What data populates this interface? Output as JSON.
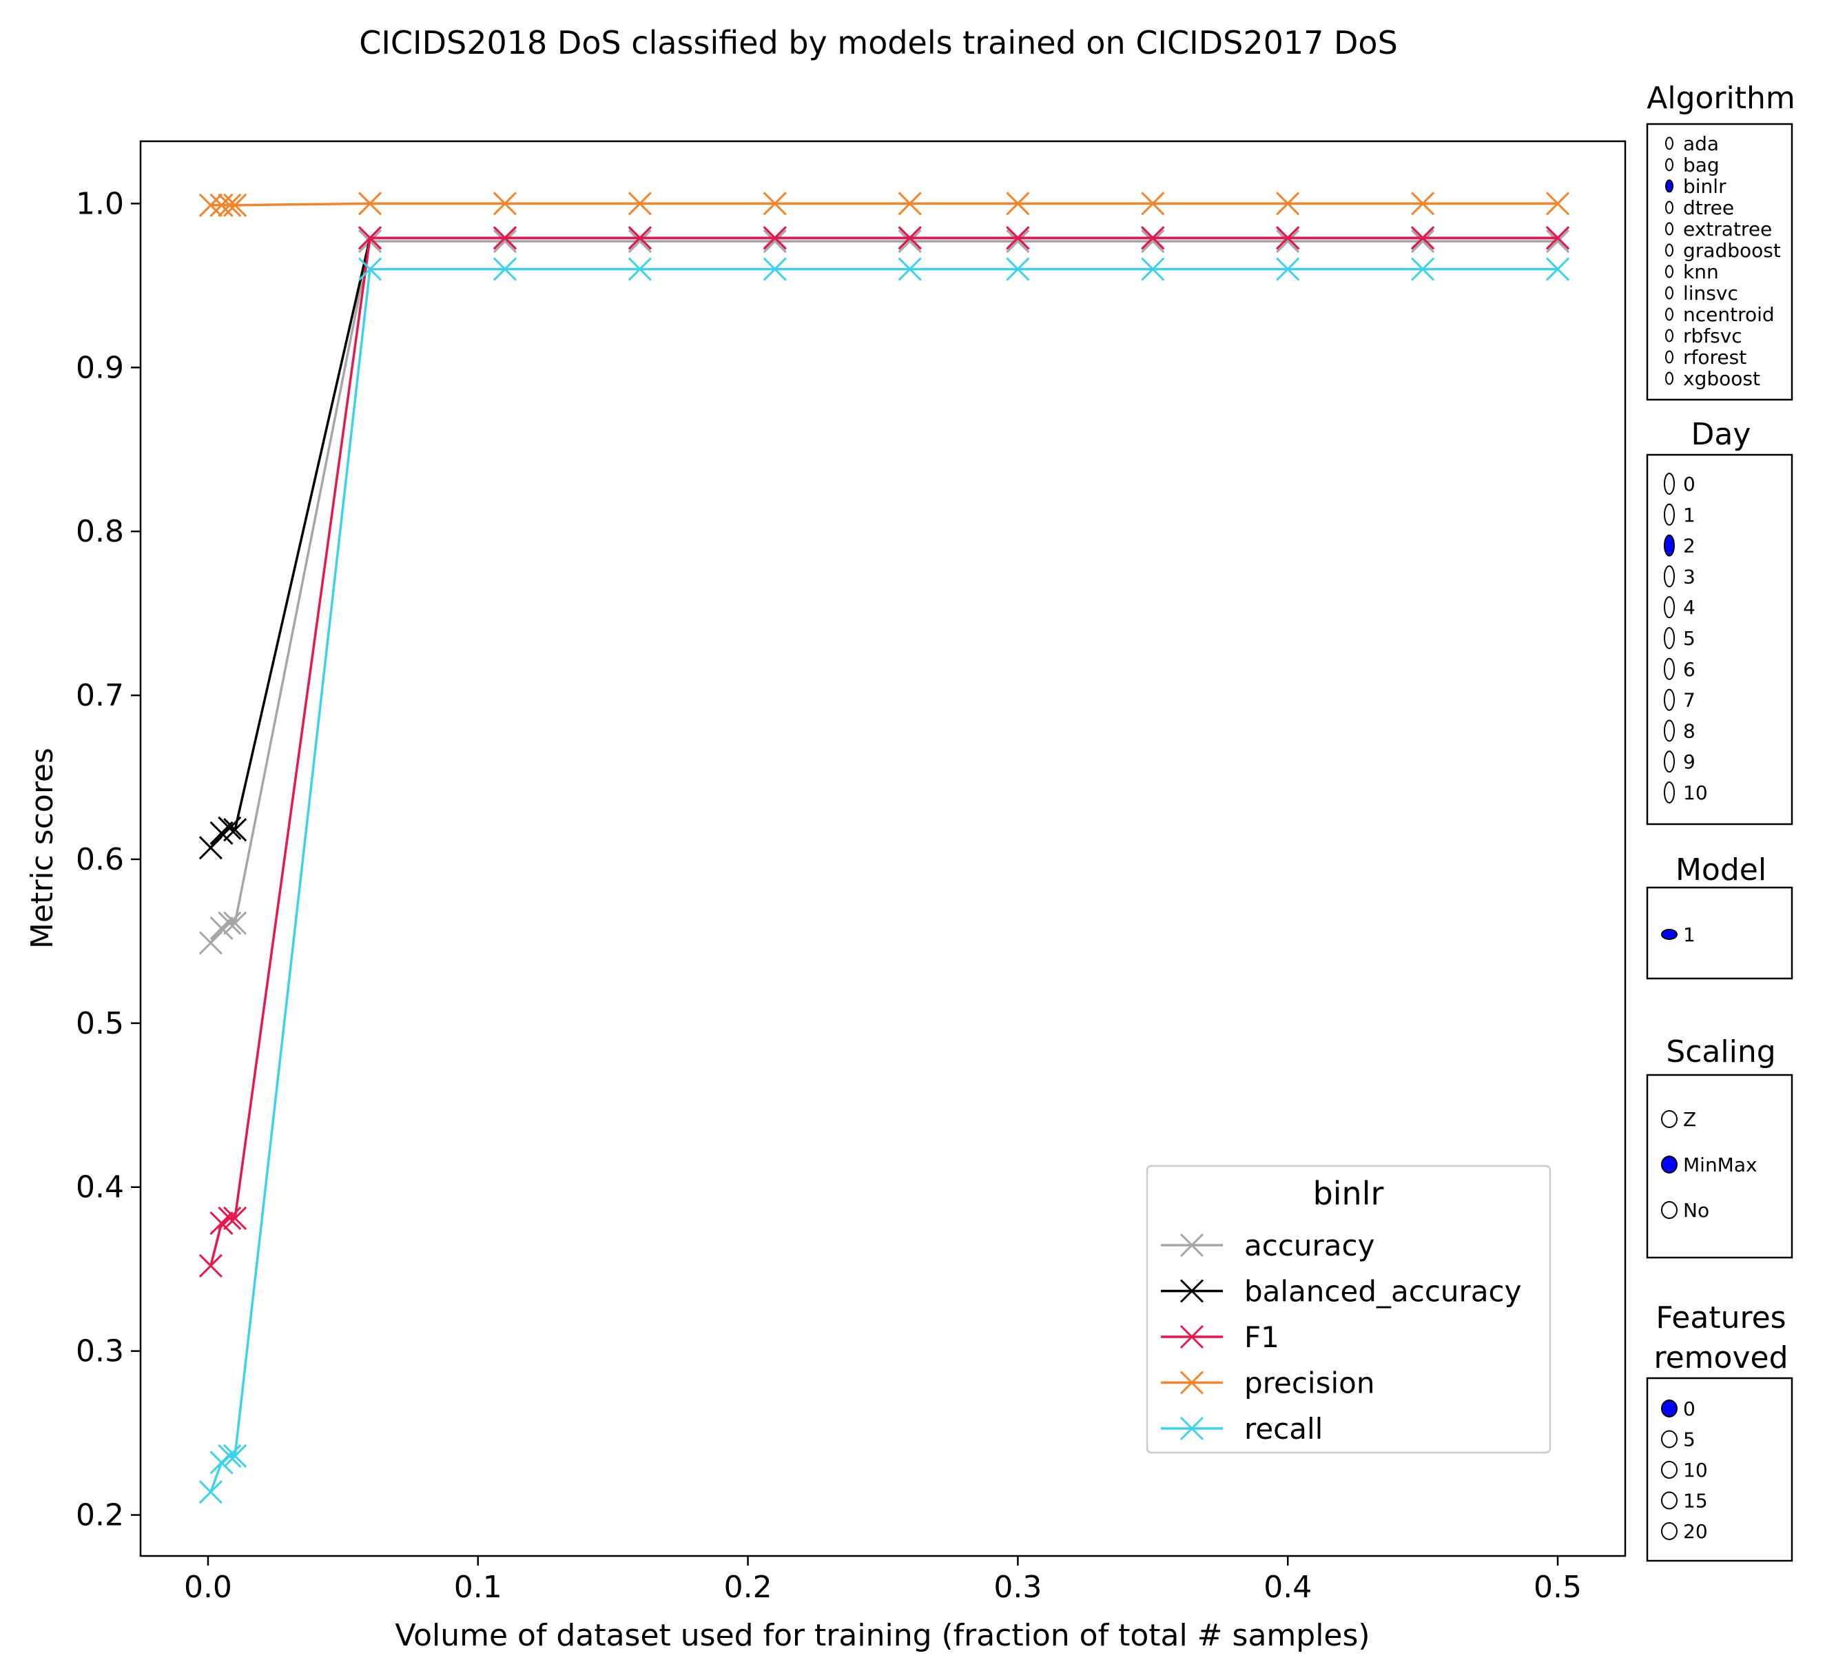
{
  "chart_data": {
    "type": "line",
    "title": "CICIDS2018 DoS classified by models trained on CICIDS2017 DoS",
    "xlabel": "Volume of dataset used for training (fraction of total # samples)",
    "ylabel": "Metric scores",
    "xlim": [
      -0.025,
      0.525
    ],
    "ylim": [
      0.175,
      1.038
    ],
    "xticks": [
      0.0,
      0.1,
      0.2,
      0.3,
      0.4,
      0.5
    ],
    "xtick_labels": [
      "0.0",
      "0.1",
      "0.2",
      "0.3",
      "0.4",
      "0.5"
    ],
    "yticks": [
      0.2,
      0.3,
      0.4,
      0.5,
      0.6,
      0.7,
      0.8,
      0.9,
      1.0
    ],
    "ytick_labels": [
      "0.2",
      "0.3",
      "0.4",
      "0.5",
      "0.6",
      "0.7",
      "0.8",
      "0.9",
      "1.0"
    ],
    "grid": false,
    "marker": "x",
    "x": [
      0.001,
      0.005,
      0.008,
      0.01,
      0.06,
      0.11,
      0.16,
      0.21,
      0.26,
      0.3,
      0.35,
      0.4,
      0.45,
      0.5
    ],
    "legend": {
      "title": "binlr",
      "placement": "lower-right"
    },
    "series": [
      {
        "name": "accuracy",
        "color": "#a6a6a6",
        "values": [
          0.549,
          0.558,
          0.561,
          0.561,
          0.977,
          0.977,
          0.977,
          0.977,
          0.977,
          0.977,
          0.977,
          0.977,
          0.977,
          0.977
        ]
      },
      {
        "name": "balanced_accuracy",
        "color": "#000000",
        "values": [
          0.607,
          0.616,
          0.619,
          0.618,
          0.979,
          0.979,
          0.979,
          0.979,
          0.979,
          0.979,
          0.979,
          0.979,
          0.979,
          0.979
        ]
      },
      {
        "name": "F1",
        "color": "#e8174d",
        "values": [
          0.352,
          0.378,
          0.381,
          0.381,
          0.979,
          0.979,
          0.979,
          0.979,
          0.979,
          0.979,
          0.979,
          0.979,
          0.979,
          0.979
        ]
      },
      {
        "name": "precision",
        "color": "#f5832a",
        "values": [
          0.999,
          0.999,
          0.999,
          0.999,
          1.0,
          1.0,
          1.0,
          1.0,
          1.0,
          1.0,
          1.0,
          1.0,
          1.0,
          1.0
        ]
      },
      {
        "name": "recall",
        "color": "#3dd2ec",
        "values": [
          0.214,
          0.232,
          0.236,
          0.236,
          0.96,
          0.96,
          0.96,
          0.96,
          0.96,
          0.96,
          0.96,
          0.96,
          0.96,
          0.96
        ]
      }
    ]
  },
  "controls": {
    "fill_color": "#0000ff",
    "groups": [
      {
        "title": "Algorithm",
        "selected": "binlr",
        "options": [
          "ada",
          "bag",
          "binlr",
          "dtree",
          "extratree",
          "gradboost",
          "knn",
          "linsvc",
          "ncentroid",
          "rbfsvc",
          "rforest",
          "xgboost"
        ]
      },
      {
        "title": "Day",
        "selected": "2",
        "options": [
          "0",
          "1",
          "2",
          "3",
          "4",
          "5",
          "6",
          "7",
          "8",
          "9",
          "10"
        ]
      },
      {
        "title": "Model",
        "selected": "1",
        "options": [
          "1"
        ]
      },
      {
        "title": "Scaling",
        "selected": "MinMax",
        "options": [
          "Z",
          "MinMax",
          "No"
        ]
      },
      {
        "title": "Features removed",
        "title_lines": [
          "Features",
          "removed"
        ],
        "selected": "0",
        "options": [
          "0",
          "5",
          "10",
          "15",
          "20"
        ]
      }
    ]
  }
}
